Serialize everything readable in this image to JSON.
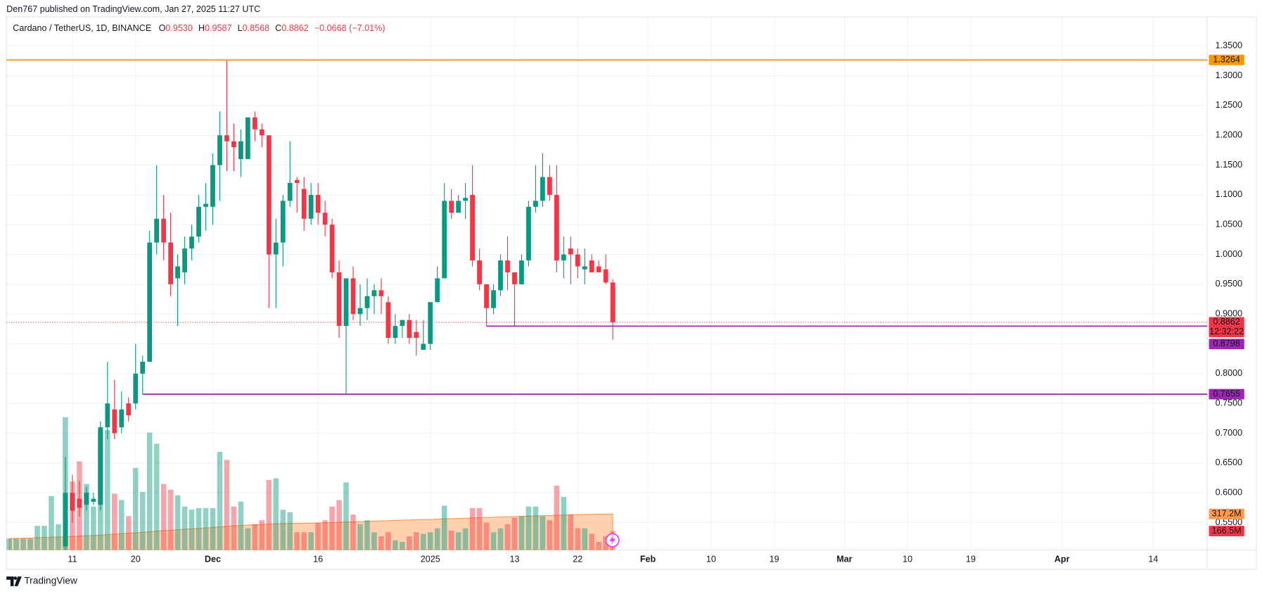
{
  "header": {
    "text": "Den767 published on TradingView.com, Jan 27, 2025 11:27 UTC"
  },
  "footer": {
    "brand": "TradingView"
  },
  "chart_data": {
    "type": "candlestick",
    "title": "Cardano / TetherUS, 1D, BINANCE",
    "legend": {
      "o": "O",
      "open": "0.9530",
      "h": "H",
      "high": "0.9587",
      "l": "L",
      "low": "0.8568",
      "c": "C",
      "close": "0.8862",
      "change": "−0.0668 (−7.01%)"
    },
    "up_color": "#089981",
    "down_color": "#f23645",
    "open": [
      null,
      null,
      null,
      null,
      null,
      null,
      null,
      null,
      0.51,
      0.6,
      0.59,
      0.58,
      0.585,
      0.58,
      0.71,
      0.74,
      0.71,
      0.75,
      0.75,
      0.8,
      0.82,
      1.02,
      1.06,
      1.02,
      0.96,
      0.97,
      1.01,
      1.03,
      1.08,
      1.08,
      1.15,
      1.2,
      1.19,
      1.16,
      1.16,
      1.23,
      1.21,
      1.2,
      1.0,
      1.02,
      1.09,
      1.125,
      1.11,
      1.06,
      1.1,
      1.07,
      1.05,
      0.97,
      0.88,
      0.96,
      0.9,
      0.91,
      0.93,
      0.94,
      0.92,
      0.86,
      0.88,
      0.89,
      0.87,
      0.84,
      0.85,
      0.92,
      0.96,
      1.09,
      1.07,
      1.09,
      1.1,
      0.99,
      0.95,
      0.91,
      0.94,
      0.99,
      0.97,
      0.95,
      0.99,
      1.08,
      1.09,
      1.13,
      1.1,
      0.99,
      1.01,
      1.0,
      0.975,
      0.99,
      0.98,
      0.975,
      0.953
    ],
    "high": [
      null,
      null,
      null,
      null,
      null,
      null,
      null,
      null,
      0.66,
      0.63,
      0.62,
      0.61,
      0.6,
      0.72,
      0.82,
      0.79,
      0.77,
      0.76,
      0.85,
      0.83,
      1.04,
      1.15,
      1.1,
      1.07,
      1.0,
      1.03,
      1.05,
      1.1,
      1.12,
      1.17,
      1.24,
      1.3264,
      1.22,
      1.21,
      1.23,
      1.24,
      1.22,
      1.2,
      1.06,
      1.1,
      1.19,
      1.13,
      1.13,
      1.12,
      1.12,
      1.09,
      1.06,
      0.99,
      0.96,
      0.98,
      0.95,
      0.96,
      0.95,
      0.96,
      0.93,
      0.9,
      0.89,
      0.9,
      0.89,
      0.89,
      0.92,
      0.98,
      1.12,
      1.11,
      1.1,
      1.12,
      1.15,
      1.01,
      0.95,
      0.95,
      1.0,
      1.03,
      0.97,
      1.0,
      1.09,
      1.15,
      1.17,
      1.15,
      1.15,
      1.03,
      1.03,
      1.01,
      1.01,
      1.0,
      0.99,
      1.0,
      0.9587
    ],
    "low": [
      null,
      null,
      null,
      null,
      null,
      null,
      null,
      null,
      0.5,
      0.55,
      0.56,
      0.57,
      0.58,
      0.57,
      0.69,
      0.69,
      0.7,
      0.72,
      0.74,
      0.7655,
      0.82,
      1.0,
      0.99,
      0.93,
      0.88,
      0.95,
      0.99,
      1.02,
      1.04,
      1.05,
      1.09,
      1.14,
      1.14,
      1.13,
      1.16,
      1.19,
      1.18,
      0.91,
      0.91,
      0.98,
      1.08,
      1.07,
      1.04,
      1.05,
      1.05,
      1.03,
      0.96,
      0.86,
      0.7655,
      0.89,
      0.88,
      0.89,
      0.9,
      0.9,
      0.85,
      0.85,
      0.86,
      0.85,
      0.83,
      0.84,
      0.84,
      0.92,
      0.96,
      1.06,
      1.07,
      1.06,
      0.98,
      0.94,
      0.88,
      0.9,
      0.93,
      0.94,
      0.8798,
      0.95,
      0.98,
      1.07,
      1.08,
      1.09,
      0.97,
      0.96,
      0.95,
      0.96,
      0.95,
      0.97,
      0.97,
      0.95,
      0.8568
    ],
    "close": [
      null,
      null,
      null,
      null,
      null,
      null,
      null,
      null,
      0.6,
      0.57,
      0.575,
      0.6,
      0.59,
      0.71,
      0.75,
      0.7,
      0.74,
      0.73,
      0.8,
      0.82,
      1.02,
      1.06,
      1.02,
      0.95,
      0.98,
      1.01,
      1.03,
      1.08,
      1.085,
      1.15,
      1.2,
      1.19,
      1.18,
      1.19,
      1.23,
      1.21,
      1.2,
      1.0,
      1.02,
      1.09,
      1.12,
      1.12,
      1.06,
      1.1,
      1.07,
      1.05,
      0.97,
      0.88,
      0.96,
      0.9,
      0.91,
      0.93,
      0.94,
      0.93,
      0.86,
      0.88,
      0.89,
      0.86,
      0.86,
      0.85,
      0.92,
      0.96,
      1.09,
      1.07,
      1.09,
      1.095,
      0.99,
      0.95,
      0.91,
      0.94,
      0.99,
      0.97,
      0.95,
      0.99,
      1.08,
      1.09,
      1.13,
      1.1,
      0.99,
      1.0,
      1.0,
      0.98,
      0.98,
      0.97,
      0.97,
      0.953,
      0.8862
    ],
    "volume": [
      100,
      100,
      100,
      100,
      213,
      213,
      475,
      227,
      1170,
      603,
      780,
      582,
      383,
      1057,
      1057,
      496,
      440,
      298,
      723,
      511,
      1035,
      936,
      582,
      532,
      482,
      383,
      355,
      369,
      369,
      369,
      865,
      794,
      383,
      426,
      191,
      227,
      262,
      617,
      631,
      355,
      333,
      156,
      156,
      156,
      241,
      262,
      383,
      440,
      596,
      312,
      227,
      262,
      156,
      121,
      156,
      85,
      71,
      121,
      156,
      142,
      156,
      191,
      390,
      170,
      156,
      191,
      369,
      369,
      241,
      156,
      191,
      227,
      284,
      298,
      383,
      383,
      298,
      262,
      567,
      468,
      312,
      191,
      191,
      142,
      71,
      121,
      166.5
    ],
    "volume_label": "166.5M",
    "volume_ma": [
      100,
      102,
      104,
      106,
      108,
      110,
      112,
      114,
      116,
      119,
      122,
      125,
      128,
      131,
      135,
      139,
      143,
      147,
      151,
      156,
      161,
      166,
      170,
      174,
      178,
      182,
      186,
      190,
      194,
      198,
      203,
      208,
      212,
      216,
      219,
      222,
      225,
      228,
      230,
      232,
      233,
      234,
      235,
      236,
      238,
      240,
      242,
      244,
      246,
      248,
      250,
      252,
      254,
      256,
      258,
      260,
      262,
      264,
      266,
      268,
      270,
      272,
      274,
      276,
      278,
      280,
      282,
      284,
      286,
      288,
      290,
      292,
      294,
      296,
      298,
      300,
      302,
      304,
      306,
      308,
      310,
      312,
      313,
      314,
      315,
      316,
      317.2
    ],
    "volume_ma_label": "317.2M",
    "volume_ma_color": "#ff9a4d",
    "vlim": [
      0,
      4740
    ],
    "countdown": "12:32:22",
    "levels": [
      {
        "value": 1.3264,
        "label": "1.3264",
        "color": "#ff9800"
      },
      {
        "value": 0.8798,
        "label": "0.8798",
        "color": "#9c27b0",
        "start": 68
      },
      {
        "value": 0.7655,
        "label": "0.7655",
        "color": "#9c27b0",
        "start": 19
      }
    ],
    "xlim": [
      -0.4,
      170.7
    ],
    "xticks": [
      {
        "value": 9,
        "label": "11"
      },
      {
        "value": 18,
        "label": "20"
      },
      {
        "value": 29,
        "label": "Dec"
      },
      {
        "value": 44,
        "label": "16"
      },
      {
        "value": 60,
        "label": "2025"
      },
      {
        "value": 72,
        "label": "13"
      },
      {
        "value": 81,
        "label": "22"
      },
      {
        "value": 91,
        "label": "Feb"
      },
      {
        "value": 100,
        "label": "10"
      },
      {
        "value": 109,
        "label": "19"
      },
      {
        "value": 119,
        "label": "Mar"
      },
      {
        "value": 128,
        "label": "10"
      },
      {
        "value": 137,
        "label": "19"
      },
      {
        "value": 150,
        "label": "Apr"
      },
      {
        "value": 163,
        "label": "14"
      }
    ],
    "ylim": [
      0.5041,
      1.4068
    ],
    "yticks": [
      {
        "value": 0.55,
        "label": "0.5500"
      },
      {
        "value": 0.6,
        "label": "0.6000"
      },
      {
        "value": 0.65,
        "label": "0.6500"
      },
      {
        "value": 0.7,
        "label": "0.7000"
      },
      {
        "value": 0.75,
        "label": "0.7500"
      },
      {
        "value": 0.8,
        "label": "0.8000"
      },
      {
        "value": 0.85,
        "label": "0.8500"
      },
      {
        "value": 0.9,
        "label": "0.9000"
      },
      {
        "value": 0.95,
        "label": "0.9500"
      },
      {
        "value": 1.0,
        "label": "1.0000"
      },
      {
        "value": 1.05,
        "label": "1.0500"
      },
      {
        "value": 1.1,
        "label": "1.1000"
      },
      {
        "value": 1.15,
        "label": "1.1500"
      },
      {
        "value": 1.2,
        "label": "1.2000"
      },
      {
        "value": 1.25,
        "label": "1.2500"
      },
      {
        "value": 1.3,
        "label": "1.3000"
      },
      {
        "value": 1.35,
        "label": "1.3500"
      }
    ],
    "grid": true
  }
}
